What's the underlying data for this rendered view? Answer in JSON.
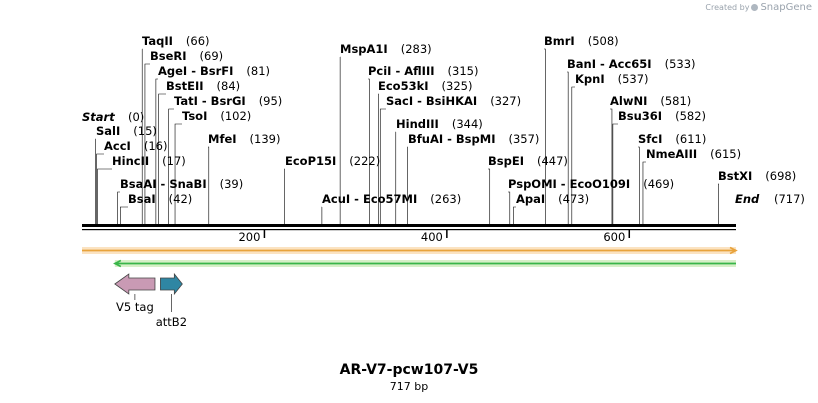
{
  "brand": {
    "prefix": "Created by",
    "name": "SnapGene"
  },
  "construct": {
    "name": "AR-V7-pcw107-V5",
    "length_label": "717 bp",
    "length": 717
  },
  "labels": {
    "start": "Start",
    "end": "End",
    "start_pos": "(0)",
    "end_pos": "(717)"
  },
  "sites": [
    {
      "name": "TaqII",
      "pos_label": "(66)",
      "bp": 66
    },
    {
      "name": "BseRI",
      "pos_label": "(69)",
      "bp": 69
    },
    {
      "name": "AgeI  -  BsrFI",
      "pos_label": "(81)",
      "bp": 81
    },
    {
      "name": "BstEII",
      "pos_label": "(84)",
      "bp": 84
    },
    {
      "name": "TatI  -  BsrGI",
      "pos_label": "(95)",
      "bp": 95
    },
    {
      "name": "TsoI",
      "pos_label": "(102)",
      "bp": 102
    },
    {
      "name": "SalI",
      "pos_label": "(15)",
      "bp": 15
    },
    {
      "name": "AccI",
      "pos_label": "(16)",
      "bp": 16
    },
    {
      "name": "HincII",
      "pos_label": "(17)",
      "bp": 17
    },
    {
      "name": "MfeI",
      "pos_label": "(139)",
      "bp": 139
    },
    {
      "name": "BsaAI  -  SnaBI",
      "pos_label": "(39)",
      "bp": 39
    },
    {
      "name": "BsaI",
      "pos_label": "(42)",
      "bp": 42
    },
    {
      "name": "EcoP15I",
      "pos_label": "(222)",
      "bp": 222
    },
    {
      "name": "MspA1I",
      "pos_label": "(283)",
      "bp": 283
    },
    {
      "name": "PciI  -  AflIII",
      "pos_label": "(315)",
      "bp": 315
    },
    {
      "name": "Eco53kI",
      "pos_label": "(325)",
      "bp": 325
    },
    {
      "name": "SacI  -  BsiHKAI",
      "pos_label": "(327)",
      "bp": 327
    },
    {
      "name": "HindIII",
      "pos_label": "(344)",
      "bp": 344
    },
    {
      "name": "BfuAI  -  BspMI",
      "pos_label": "(357)",
      "bp": 357
    },
    {
      "name": "AcuI  -  Eco57MI",
      "pos_label": "(263)",
      "bp": 263
    },
    {
      "name": "BmrI",
      "pos_label": "(508)",
      "bp": 508
    },
    {
      "name": "BanI  -  Acc65I",
      "pos_label": "(533)",
      "bp": 533
    },
    {
      "name": "KpnI",
      "pos_label": "(537)",
      "bp": 537
    },
    {
      "name": "AlwNI",
      "pos_label": "(581)",
      "bp": 581
    },
    {
      "name": "Bsu36I",
      "pos_label": "(582)",
      "bp": 582
    },
    {
      "name": "SfcI",
      "pos_label": "(611)",
      "bp": 611
    },
    {
      "name": "NmeAIII",
      "pos_label": "(615)",
      "bp": 615
    },
    {
      "name": "BstXI",
      "pos_label": "(698)",
      "bp": 698
    },
    {
      "name": "BspEI",
      "pos_label": "(447)",
      "bp": 447
    },
    {
      "name": "PspOMI  -  EcoO109I",
      "pos_label": "(469)",
      "bp": 469
    },
    {
      "name": "ApaI",
      "pos_label": "(473)",
      "bp": 473
    }
  ],
  "ticks": [
    {
      "label": "200",
      "bp": 200
    },
    {
      "label": "400",
      "bp": 400
    },
    {
      "label": "600",
      "bp": 600
    }
  ],
  "features": [
    {
      "label": "V5 tag",
      "direction": "reverse",
      "color": "#c99ab4",
      "start_bp": 36,
      "end_bp": 80
    },
    {
      "label": "attB2",
      "direction": "forward",
      "color": "#2f86a3",
      "start_bp": 86,
      "end_bp": 110
    }
  ],
  "ranges": [
    {
      "name": "orange-range",
      "color": "#e8a33c",
      "start_bp": 0,
      "end_bp": 717,
      "direction": "forward"
    },
    {
      "name": "green-range",
      "color": "#39b54a",
      "start_bp": 36,
      "end_bp": 717,
      "direction": "reverse"
    }
  ],
  "colors": {
    "backbone": "#000000",
    "orange_fill": "#fbe3c2",
    "green_fill": "#d7f0c8"
  }
}
